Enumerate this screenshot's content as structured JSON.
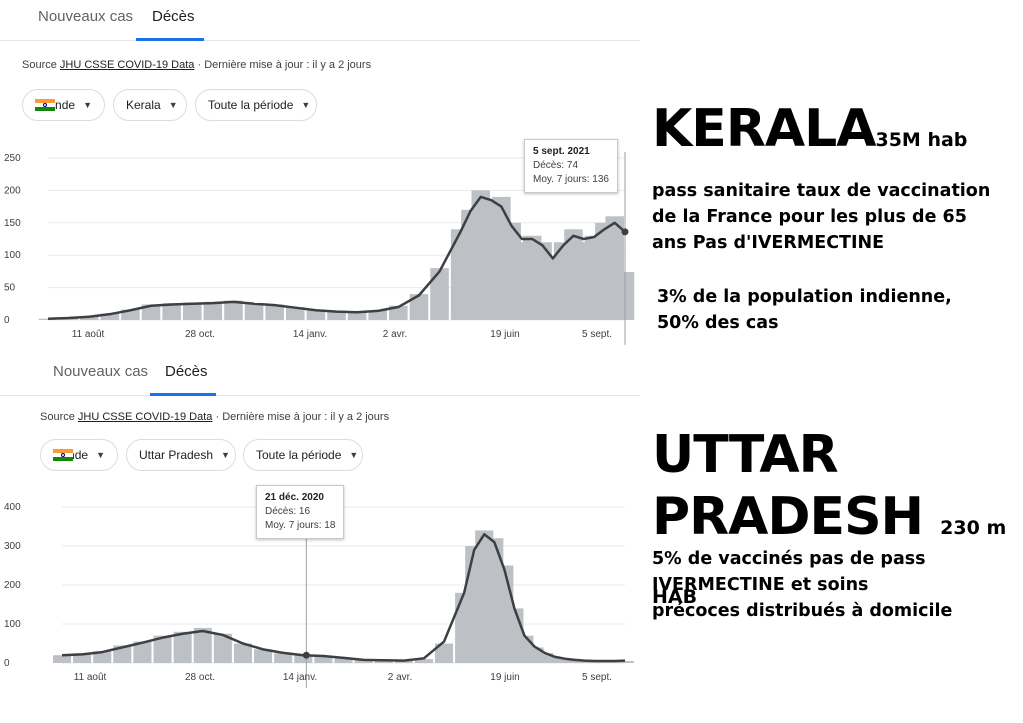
{
  "panels": [
    {
      "tabs": {
        "new_cases": "Nouveaux cas",
        "deaths": "Décès"
      },
      "source": {
        "prefix": "Source",
        "link": "JHU CSSE COVID-19 Data",
        "suffix": "· Dernière mise à jour : il y a 2 jours"
      },
      "filters": {
        "country": "Inde",
        "region": "Kerala",
        "period": "Toute la période"
      },
      "tooltip": {
        "date": "5 sept. 2021",
        "deaths": "Décès: 74",
        "avg": "Moy. 7 jours: 136"
      }
    },
    {
      "tabs": {
        "new_cases": "Nouveaux cas",
        "deaths": "Décès"
      },
      "source": {
        "prefix": "Source",
        "link": "JHU CSSE COVID-19 Data",
        "suffix": "· Dernière mise à jour : il y a 2 jours"
      },
      "filters": {
        "country": "Inde",
        "region": "Uttar Pradesh",
        "period": "Toute la période"
      },
      "tooltip": {
        "date": "21 déc. 2020",
        "deaths": "Décès: 16",
        "avg": "Moy. 7 jours: 18"
      }
    }
  ],
  "annotations": {
    "kerala_title": "KERALA",
    "kerala_pop": "35M hab",
    "kerala_line1": "pass sanitaire  taux de vaccination",
    "kerala_line2": "de la France pour les plus de 65",
    "kerala_line3": "ans  Pas d'IVERMECTINE",
    "kerala_line4": "3% de la population indienne,",
    "kerala_line5": "50% des cas",
    "up_title1": "UTTAR",
    "up_title2": "PRADESH",
    "up_pop": "230 m HAB",
    "up_line1": "5% de vaccinés pas de pass",
    "up_line2": "IVERMECTINE  et soins",
    "up_line3": "précoces distribués à domicile"
  },
  "colors": {
    "bars": "#bdc1c6",
    "line": "#3c4043",
    "accent": "#1a73e8",
    "grid": "#e8eaed"
  },
  "chart_data": [
    {
      "type": "bar",
      "title": "Décès — Kerala",
      "x_ticks": [
        "11 août",
        "28 oct.",
        "14 janv.",
        "2 avr.",
        "19 juin",
        "5 sept."
      ],
      "y_ticks": [
        0,
        50,
        100,
        150,
        200,
        250
      ],
      "ylim": [
        0,
        250
      ],
      "grid": true,
      "series": [
        {
          "name": "Décès",
          "kind": "bar",
          "x": [
            0,
            20,
            40,
            60,
            80,
            100,
            120,
            140,
            160,
            180,
            200,
            220,
            240,
            260,
            280,
            300,
            320,
            340,
            360,
            380,
            400,
            410,
            420,
            430,
            440,
            450,
            460,
            470,
            480,
            490,
            500,
            510,
            520,
            530,
            540,
            550,
            560
          ],
          "values": [
            2,
            3,
            6,
            10,
            16,
            24,
            26,
            27,
            28,
            30,
            26,
            24,
            20,
            16,
            14,
            13,
            15,
            22,
            40,
            80,
            140,
            170,
            200,
            185,
            190,
            150,
            120,
            130,
            120,
            95,
            120,
            140,
            120,
            130,
            150,
            160,
            74
          ]
        },
        {
          "name": "Moy. 7 jours",
          "kind": "line",
          "x": [
            0,
            20,
            40,
            60,
            80,
            100,
            120,
            140,
            160,
            180,
            200,
            220,
            240,
            260,
            280,
            300,
            320,
            340,
            360,
            380,
            400,
            410,
            420,
            430,
            440,
            450,
            460,
            470,
            480,
            490,
            500,
            510,
            520,
            530,
            540,
            550,
            560
          ],
          "values": [
            2,
            3,
            5,
            9,
            15,
            22,
            24,
            25,
            26,
            28,
            25,
            23,
            19,
            15,
            13,
            12,
            14,
            20,
            38,
            75,
            135,
            168,
            190,
            185,
            175,
            145,
            125,
            125,
            115,
            95,
            115,
            130,
            125,
            128,
            140,
            150,
            136
          ]
        }
      ]
    },
    {
      "type": "bar",
      "title": "Décès — Uttar Pradesh",
      "x_ticks": [
        "11 août",
        "28 oct.",
        "14 janv.",
        "2 avr.",
        "19 juin",
        "5 sept."
      ],
      "y_ticks": [
        0,
        100,
        200,
        300,
        400
      ],
      "ylim": [
        0,
        400
      ],
      "grid": true,
      "series": [
        {
          "name": "Décès",
          "kind": "bar",
          "x": [
            0,
            20,
            40,
            60,
            80,
            100,
            120,
            140,
            160,
            180,
            200,
            220,
            240,
            260,
            280,
            300,
            320,
            340,
            360,
            380,
            400,
            410,
            420,
            430,
            440,
            450,
            460,
            470,
            480,
            490,
            500,
            510,
            520,
            530,
            540,
            550,
            560
          ],
          "values": [
            20,
            25,
            30,
            45,
            55,
            70,
            80,
            90,
            75,
            50,
            35,
            25,
            20,
            18,
            12,
            8,
            7,
            6,
            10,
            50,
            180,
            300,
            340,
            320,
            250,
            140,
            70,
            40,
            25,
            15,
            10,
            8,
            6,
            5,
            5,
            5,
            5
          ]
        },
        {
          "name": "Moy. 7 jours",
          "kind": "line",
          "x": [
            0,
            20,
            40,
            60,
            80,
            100,
            120,
            140,
            160,
            180,
            200,
            220,
            240,
            260,
            280,
            300,
            320,
            340,
            360,
            380,
            400,
            410,
            420,
            430,
            440,
            450,
            460,
            470,
            480,
            490,
            500,
            510,
            520,
            530,
            540,
            550,
            560
          ],
          "values": [
            20,
            22,
            28,
            40,
            52,
            65,
            75,
            82,
            72,
            50,
            35,
            26,
            20,
            18,
            13,
            8,
            7,
            6,
            12,
            55,
            180,
            290,
            330,
            310,
            240,
            140,
            70,
            42,
            26,
            16,
            11,
            8,
            6,
            5,
            5,
            5,
            6
          ]
        }
      ]
    }
  ]
}
